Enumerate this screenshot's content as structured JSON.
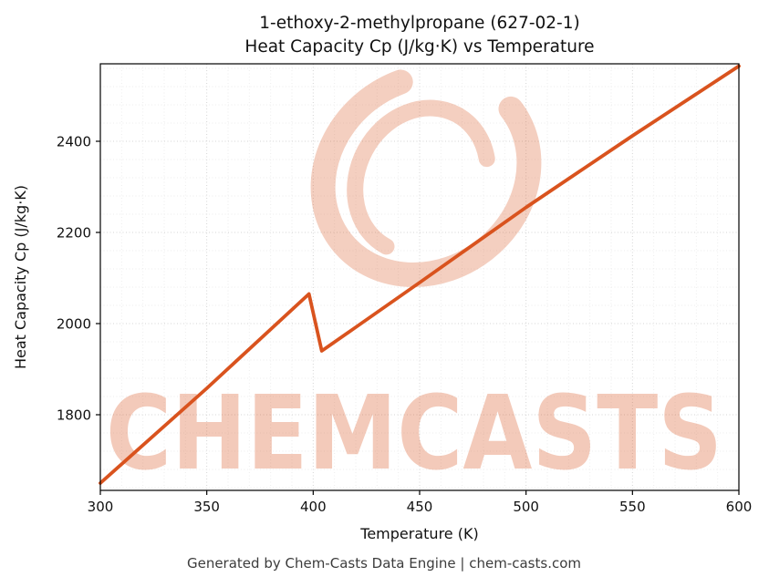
{
  "title": {
    "line1": "1-ethoxy-2-methylpropane (627-02-1)",
    "line2": "Heat Capacity Cp (J/kg·K) vs Temperature"
  },
  "footer": "Generated by Chem-Casts Data Engine | chem-casts.com",
  "watermark": {
    "text": "CHEMCASTS"
  },
  "colors": {
    "line": "#d9531e",
    "watermark": "#d9531e",
    "grid_major": "#d4d4d4",
    "grid_minor": "#ededed",
    "footer_text": "#3c3c3c"
  },
  "chart_data": {
    "type": "line",
    "title": "1-ethoxy-2-methylpropane (627-02-1) Heat Capacity Cp (J/kg·K) vs Temperature",
    "xlabel": "Temperature (K)",
    "ylabel": "Heat Capacity Cp (J/kg·K)",
    "xlim": [
      300,
      600
    ],
    "ylim": [
      1634,
      2570
    ],
    "x_ticks": [
      300,
      350,
      400,
      450,
      500,
      550,
      600
    ],
    "y_ticks": [
      1800,
      2000,
      2200,
      2400
    ],
    "x_minor_step": 10,
    "y_minor_step": 40,
    "grid": true,
    "legend": "none",
    "series": [
      {
        "name": "Heat Capacity Cp",
        "color": "#d9531e",
        "points": [
          [
            300,
            1650
          ],
          [
            350,
            1858
          ],
          [
            398,
            2065
          ],
          [
            404,
            1940
          ],
          [
            420,
            1992
          ],
          [
            450,
            2090
          ],
          [
            500,
            2255
          ],
          [
            550,
            2412
          ],
          [
            600,
            2565
          ]
        ]
      }
    ]
  }
}
